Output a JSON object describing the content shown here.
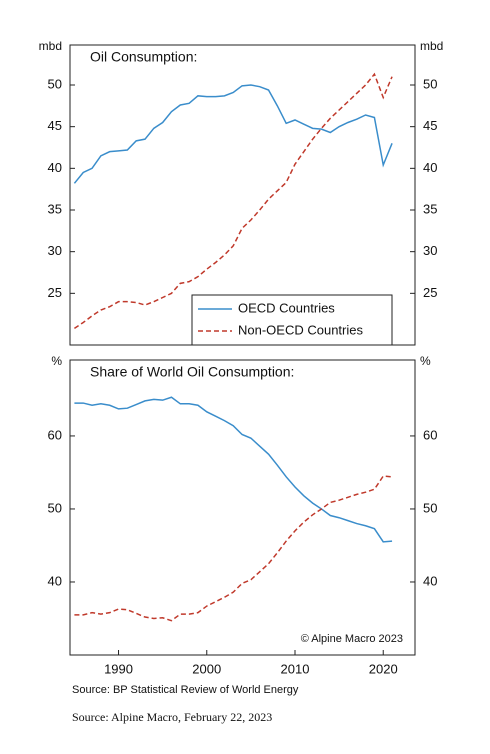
{
  "chart_data": [
    {
      "type": "line",
      "title": "Oil Consumption:",
      "y_label": "mbd",
      "y2_label": "mbd",
      "x": [
        1985,
        1986,
        1987,
        1988,
        1989,
        1990,
        1991,
        1992,
        1993,
        1994,
        1995,
        1996,
        1997,
        1998,
        1999,
        2000,
        2001,
        2002,
        2003,
        2004,
        2005,
        2006,
        2007,
        2008,
        2009,
        2010,
        2011,
        2012,
        2013,
        2014,
        2015,
        2016,
        2017,
        2018,
        2019,
        2020,
        2021
      ],
      "xlim": [
        1984.5,
        2023.6
      ],
      "ylim": [
        18.8,
        54.8
      ],
      "yticks": [
        25,
        30,
        35,
        40,
        45,
        50
      ],
      "legend": "lower right",
      "series": [
        {
          "name": "OECD Countries",
          "color": "#3a8dcb",
          "linestyle": "solid",
          "values": [
            38.2,
            39.5,
            40,
            41.5,
            42,
            42.1,
            42.2,
            43.3,
            43.5,
            44.8,
            45.5,
            46.8,
            47.6,
            47.8,
            48.7,
            48.6,
            48.6,
            48.7,
            49.1,
            49.9,
            50.0,
            49.8,
            49.4,
            47.5,
            45.4,
            45.8,
            45.3,
            44.8,
            44.7,
            44.3,
            45.0,
            45.5,
            45.9,
            46.4,
            46.1,
            40.4,
            43.0
          ]
        },
        {
          "name": "Non-OECD Countries",
          "color": "#c0392b",
          "linestyle": "dashed",
          "values": [
            20.8,
            21.5,
            22.3,
            23,
            23.4,
            24,
            24,
            23.9,
            23.6,
            24,
            24.5,
            25,
            26.2,
            26.4,
            27,
            27.9,
            28.7,
            29.6,
            30.7,
            32.8,
            33.8,
            35,
            36.3,
            37.3,
            38.3,
            40.5,
            42,
            43.5,
            44.8,
            46,
            47,
            48,
            49,
            50,
            51.3,
            48.5,
            51.0
          ]
        }
      ]
    },
    {
      "type": "line",
      "title": "Share of World Oil Consumption:",
      "y_label": "%",
      "y2_label": "%",
      "x": [
        1985,
        1986,
        1987,
        1988,
        1989,
        1990,
        1991,
        1992,
        1993,
        1994,
        1995,
        1996,
        1997,
        1998,
        1999,
        2000,
        2001,
        2002,
        2003,
        2004,
        2005,
        2006,
        2007,
        2008,
        2009,
        2010,
        2011,
        2012,
        2013,
        2014,
        2015,
        2016,
        2017,
        2018,
        2019,
        2020,
        2021
      ],
      "xlim": [
        1984.5,
        2023.6
      ],
      "xticks": [
        1990,
        2000,
        2010,
        2020
      ],
      "ylim": [
        30,
        70.4
      ],
      "yticks": [
        40,
        50,
        60
      ],
      "annotation": "© Alpine Macro 2023",
      "source": "Source: BP Statistical Review of World Energy",
      "series": [
        {
          "name": "OECD Countries",
          "color": "#3a8dcb",
          "linestyle": "solid",
          "values": [
            64.5,
            64.5,
            64.2,
            64.4,
            64.2,
            63.7,
            63.8,
            64.3,
            64.8,
            65.0,
            64.9,
            65.3,
            64.4,
            64.4,
            64.2,
            63.3,
            62.7,
            62.1,
            61.4,
            60.2,
            59.7,
            58.6,
            57.5,
            56,
            54.4,
            53,
            51.8,
            50.8,
            50,
            49.1,
            48.8,
            48.4,
            48,
            47.7,
            47.3,
            45.5,
            45.6
          ]
        },
        {
          "name": "Non-OECD Countries",
          "color": "#c0392b",
          "linestyle": "dashed",
          "values": [
            35.5,
            35.5,
            35.8,
            35.6,
            35.8,
            36.3,
            36.2,
            35.7,
            35.2,
            35,
            35.1,
            34.7,
            35.6,
            35.6,
            35.8,
            36.7,
            37.3,
            37.9,
            38.6,
            39.8,
            40.3,
            41.4,
            42.5,
            44,
            45.6,
            47,
            48.2,
            49.2,
            50,
            50.9,
            51.2,
            51.6,
            52,
            52.3,
            52.7,
            54.5,
            54.4
          ]
        }
      ]
    }
  ],
  "caption": "Source: Alpine Macro, February 22, 2023"
}
